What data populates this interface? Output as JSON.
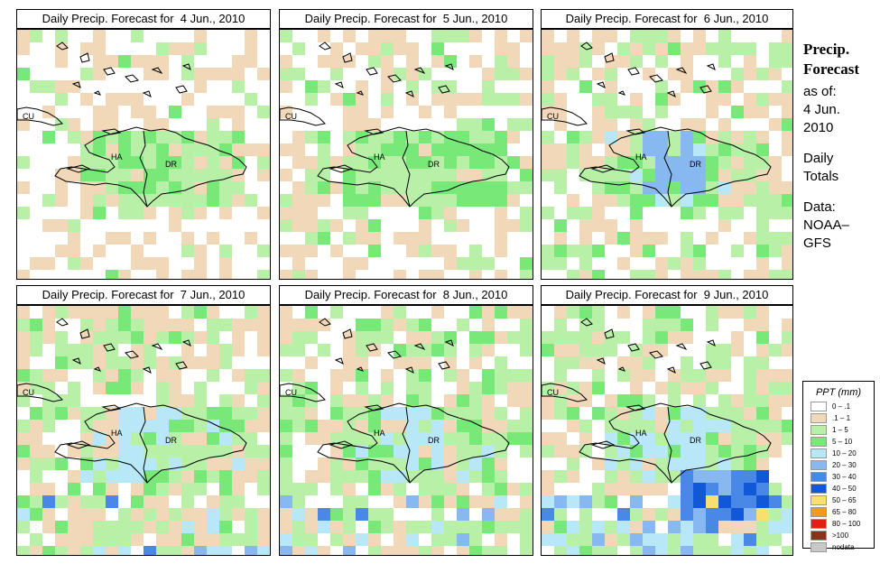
{
  "panels": [
    {
      "title": "Daily Precip. Forecast for  4 Jun., 2010",
      "day": 0
    },
    {
      "title": "Daily Precip. Forecast for  5 Jun., 2010",
      "day": 1
    },
    {
      "title": "Daily Precip. Forecast for  6 Jun., 2010",
      "day": 2
    },
    {
      "title": "Daily Precip. Forecast for  7 Jun., 2010",
      "day": 3
    },
    {
      "title": "Daily Precip. Forecast for  8 Jun., 2010",
      "day": 4
    },
    {
      "title": "Daily Precip. Forecast for  9 Jun., 2010",
      "day": 5
    }
  ],
  "map_labels": {
    "cuba": "CU",
    "haiti": "HA",
    "dominican_republic": "DR"
  },
  "sidebar": {
    "heading_line1": "Precip.",
    "heading_line2": "Forecast",
    "asof_line1": "as of:",
    "asof_line2": "4 Jun.",
    "asof_line3": "2010",
    "totals_line1": "Daily",
    "totals_line2": "Totals",
    "data_line1": "Data:",
    "data_line2": "NOAA–",
    "data_line3": "GFS"
  },
  "legend": {
    "title": "PPT (mm)",
    "items": [
      {
        "label": "0 – .1",
        "color": "#ffffff"
      },
      {
        "label": ".1 – 1",
        "color": "#f0d8b8"
      },
      {
        "label": "1 – 5",
        "color": "#b8f0a8"
      },
      {
        "label": "5 – 10",
        "color": "#78e878"
      },
      {
        "label": "10 – 20",
        "color": "#b8e8f8"
      },
      {
        "label": "20 – 30",
        "color": "#88b8f0"
      },
      {
        "label": "30 – 40",
        "color": "#4a88e8"
      },
      {
        "label": "40 – 50",
        "color": "#1058d8"
      },
      {
        "label": "50 – 65",
        "color": "#f8e070"
      },
      {
        "label": "65 – 80",
        "color": "#f89818"
      },
      {
        "label": "80 – 100",
        "color": "#e02010"
      },
      {
        "label": ">100",
        "color": "#903018"
      },
      {
        "label": "nodata",
        "color": "#c8c8c8"
      }
    ]
  }
}
